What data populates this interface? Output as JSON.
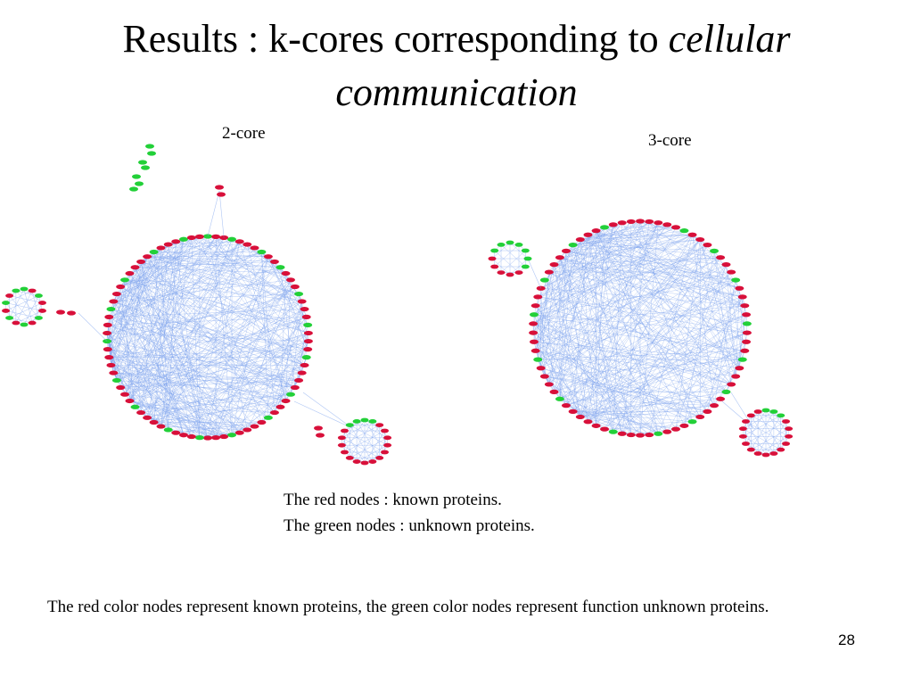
{
  "title": {
    "line1_normal": "Results : k-cores corresponding to ",
    "line1_italic": "cellular",
    "line2_italic": "communication"
  },
  "panels": [
    {
      "label": "2-core"
    },
    {
      "label": "3-core"
    }
  ],
  "legend": {
    "red_line": "The red nodes :  known proteins.",
    "green_line": "The green nodes : unknown proteins."
  },
  "footnote": "The red color nodes represent known proteins, the green color nodes represent function unknown proteins.",
  "page_number": "28",
  "colors": {
    "known_node": "#d8103a",
    "unknown_node": "#22d038",
    "edge": "#7aa0ec"
  }
}
